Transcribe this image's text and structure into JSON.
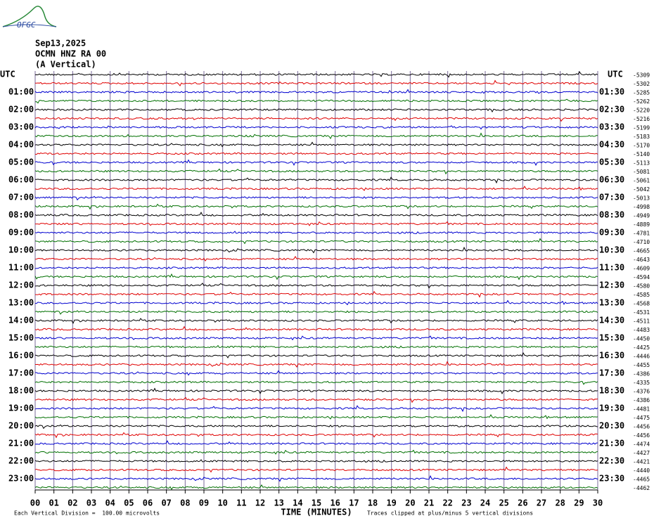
{
  "logo": "OFGC",
  "header": {
    "date": "Sep13,2025",
    "station": "OCMN HNZ RA 00",
    "component": "(A Vertical)"
  },
  "left_labels": [
    "UTC",
    "01:00",
    "02:00",
    "03:00",
    "04:00",
    "05:00",
    "06:00",
    "07:00",
    "08:00",
    "09:00",
    "10:00",
    "11:00",
    "12:00",
    "13:00",
    "14:00",
    "15:00",
    "16:00",
    "17:00",
    "18:00",
    "19:00",
    "20:00",
    "21:00",
    "22:00",
    "23:00"
  ],
  "right_labels": [
    "UTC",
    "01:30",
    "02:30",
    "03:30",
    "04:30",
    "05:30",
    "06:30",
    "07:30",
    "08:30",
    "09:30",
    "10:30",
    "11:30",
    "12:30",
    "13:30",
    "14:30",
    "15:30",
    "16:30",
    "17:30",
    "18:30",
    "19:30",
    "20:30",
    "21:30",
    "22:30",
    "23:30"
  ],
  "offsets": [
    -5309,
    -5302,
    -5285,
    -5262,
    -5220,
    -5216,
    -5199,
    -5183,
    -5170,
    -5140,
    -5113,
    -5081,
    -5061,
    -5042,
    -5013,
    -4998,
    -4949,
    -4889,
    -4781,
    -4710,
    -4665,
    -4643,
    -4609,
    -4594,
    -4580,
    -4585,
    -4568,
    -4531,
    -4511,
    -4483,
    -4450,
    -4425,
    -4446,
    -4455,
    -4386,
    -4335,
    -4376,
    -4386,
    -4481,
    -4475,
    -4456,
    -4456,
    -4474,
    -4427,
    -4421,
    -4440,
    -4465,
    -4462
  ],
  "x_axis": {
    "ticks": [
      "00",
      "01",
      "02",
      "03",
      "04",
      "05",
      "06",
      "07",
      "08",
      "09",
      "10",
      "11",
      "12",
      "13",
      "14",
      "15",
      "16",
      "17",
      "18",
      "19",
      "20",
      "21",
      "22",
      "23",
      "24",
      "25",
      "26",
      "27",
      "28",
      "29",
      "30"
    ],
    "label": "TIME (MINUTES)"
  },
  "footer": {
    "scale": "Each Vertical Division =  100.00 microvolts",
    "clip": "Traces clipped at plus/minus 5 vertical divisions"
  },
  "trace_colors": [
    "#000000",
    "#e00000",
    "#0000d0",
    "#007000"
  ]
}
